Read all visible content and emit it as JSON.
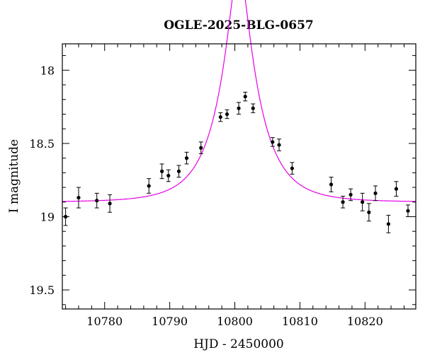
{
  "chart_data": {
    "type": "scatter",
    "title": "OGLE-2025-BLG-0657",
    "xlabel": "HJD - 2450000",
    "ylabel": "I magnitude",
    "xlim": [
      10773.5,
      10827.8
    ],
    "ylim": [
      19.63,
      17.82
    ],
    "y_inverted": true,
    "x_major_ticks": [
      10780,
      10790,
      10800,
      10810,
      10820
    ],
    "y_major_ticks": [
      18,
      18.5,
      19,
      19.5
    ],
    "x_tick_labels": [
      "10780",
      "10790",
      "10800",
      "10810",
      "10820"
    ],
    "y_tick_labels": [
      "18",
      "18.5",
      "19",
      "19.5"
    ],
    "grid": false,
    "model_color": "#e600e6",
    "model": {
      "t0": 10800.6,
      "tE": 6.0,
      "u0": 0.235,
      "base_mag": 18.9,
      "shape": "paczynski"
    },
    "series": [
      {
        "x": [
          10774.0,
          10776.0,
          10778.8,
          10780.8,
          10786.8,
          10788.8,
          10789.8,
          10791.4,
          10792.6,
          10794.8,
          10797.8,
          10798.8,
          10800.6,
          10801.6,
          10802.8,
          10805.8,
          10806.8,
          10808.8,
          10814.8,
          10816.6,
          10817.8,
          10819.6,
          10820.6,
          10821.6,
          10823.6,
          10824.8,
          10826.6
        ],
        "y": [
          19.0,
          18.87,
          18.89,
          18.91,
          18.79,
          18.69,
          18.72,
          18.69,
          18.6,
          18.53,
          18.32,
          18.3,
          18.26,
          18.18,
          18.26,
          18.49,
          18.51,
          18.67,
          18.78,
          18.9,
          18.85,
          18.9,
          18.97,
          18.84,
          19.05,
          18.81,
          18.96
        ],
        "err": [
          0.06,
          0.07,
          0.05,
          0.06,
          0.05,
          0.05,
          0.04,
          0.04,
          0.04,
          0.04,
          0.03,
          0.03,
          0.04,
          0.03,
          0.03,
          0.03,
          0.04,
          0.04,
          0.05,
          0.04,
          0.04,
          0.06,
          0.06,
          0.05,
          0.06,
          0.05,
          0.04
        ]
      }
    ]
  }
}
